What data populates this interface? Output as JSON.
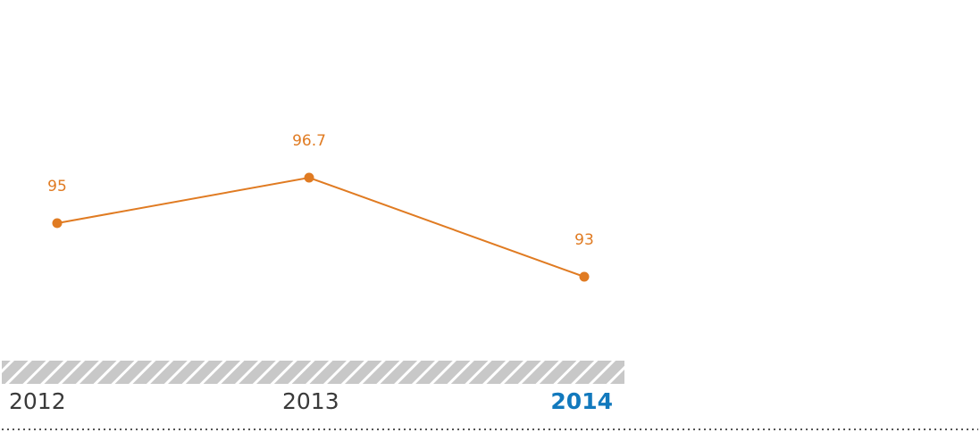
{
  "chart_data": {
    "type": "line",
    "categories": [
      "2012",
      "2013",
      "2014"
    ],
    "values": [
      95,
      96.7,
      93
    ],
    "value_labels": [
      "95",
      "96.7",
      "93"
    ],
    "highlight_category": "2014",
    "ylim": [
      90,
      100
    ],
    "grid": false,
    "legend": "none",
    "colors": {
      "line": "#e07b22",
      "point": "#e07b22",
      "value_label": "#e07b22",
      "year_label": "#3a3a3a",
      "year_label_highlight": "#1279bd",
      "band": "#c8c8c8",
      "band_hatch": "#ffffff",
      "dotted_rule": "#555555"
    }
  }
}
